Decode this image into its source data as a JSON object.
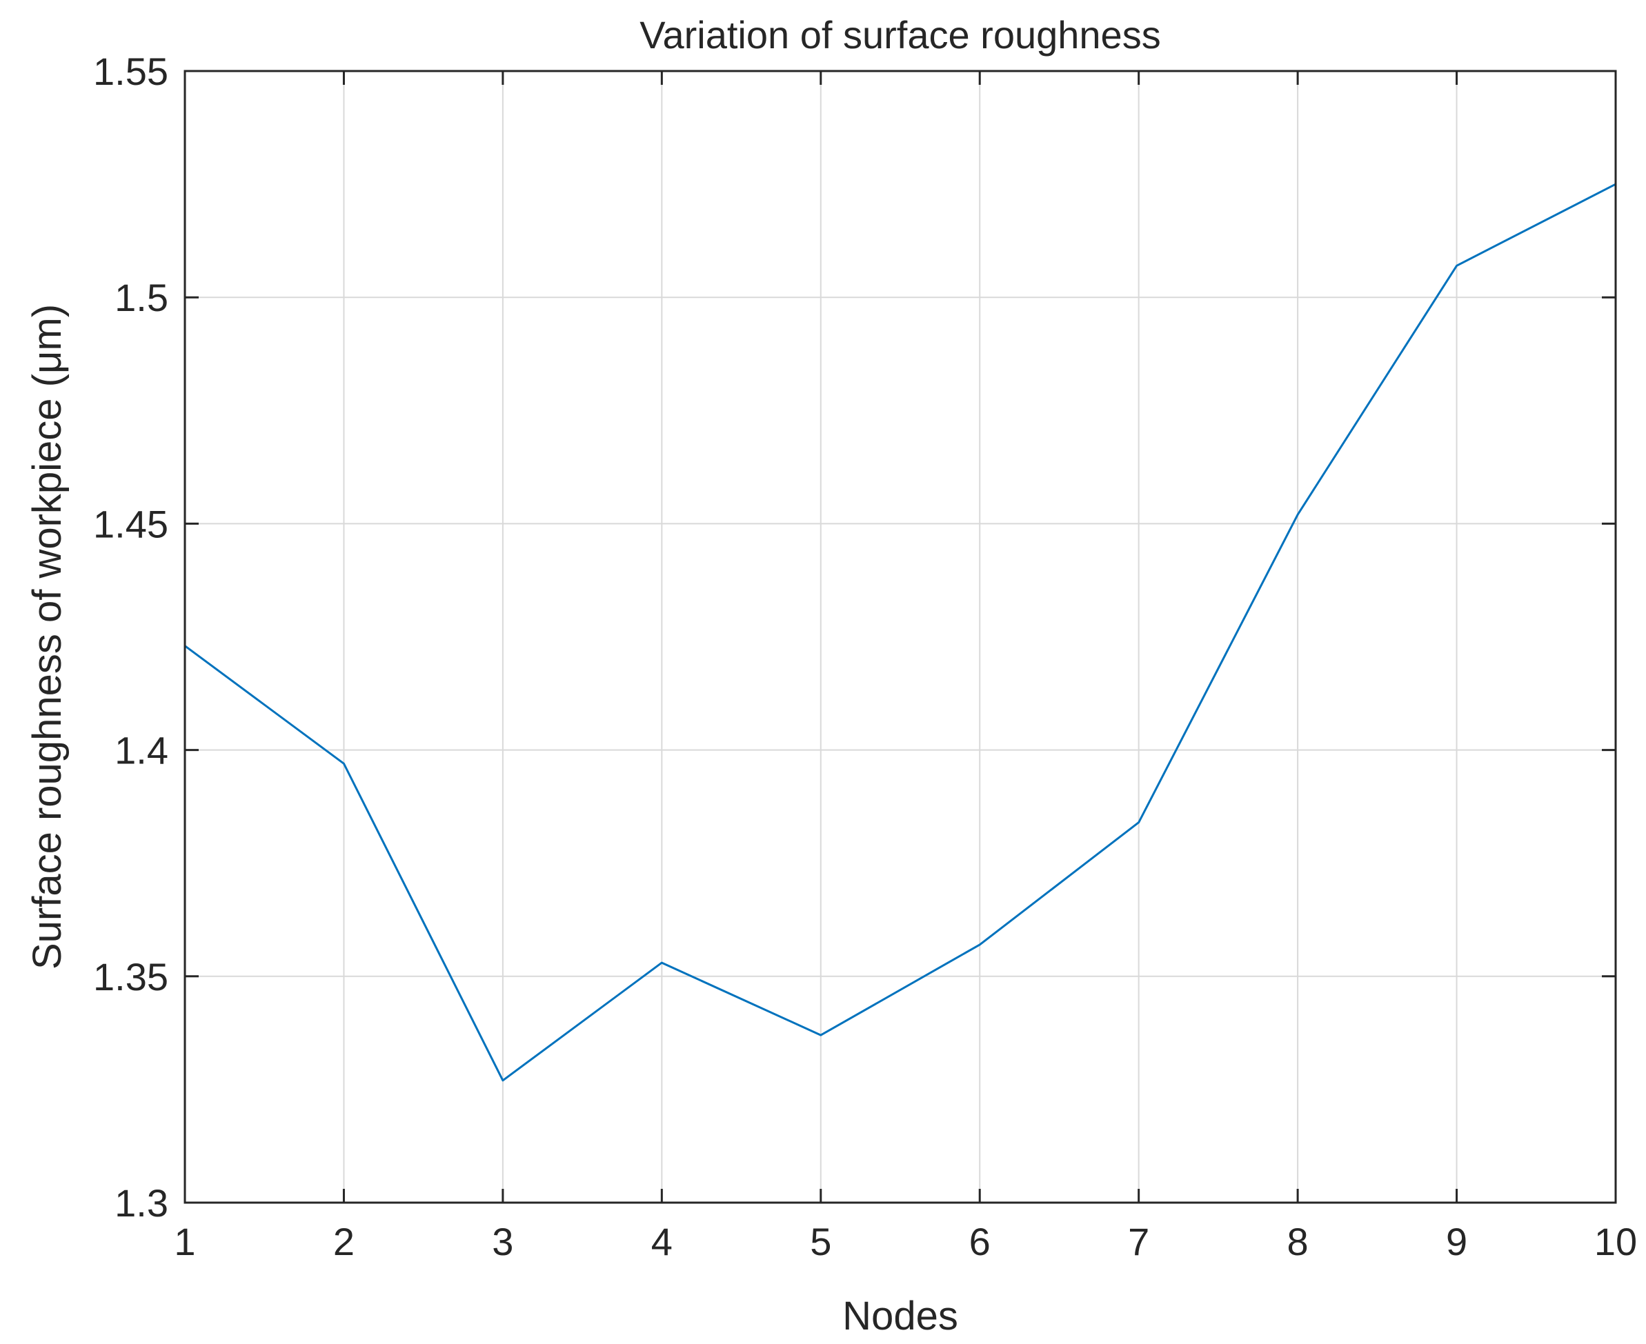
{
  "chart_data": {
    "type": "line",
    "title": "Variation of surface roughness",
    "xlabel": "Nodes",
    "ylabel": "Surface roughness of workpiece (μm)",
    "xlim": [
      1,
      10
    ],
    "ylim": [
      1.3,
      1.55
    ],
    "x_ticks": [
      "1",
      "2",
      "3",
      "4",
      "5",
      "6",
      "7",
      "8",
      "9",
      "10"
    ],
    "y_ticks": [
      "1.3",
      "1.35",
      "1.4",
      "1.45",
      "1.5",
      "1.55"
    ],
    "grid": true,
    "series": [
      {
        "color": "#0072BD",
        "x": [
          1,
          2,
          3,
          4,
          5,
          6,
          7,
          8,
          9,
          10
        ],
        "y": [
          1.423,
          1.397,
          1.327,
          1.353,
          1.337,
          1.357,
          1.384,
          1.452,
          1.507,
          1.525
        ]
      }
    ]
  }
}
